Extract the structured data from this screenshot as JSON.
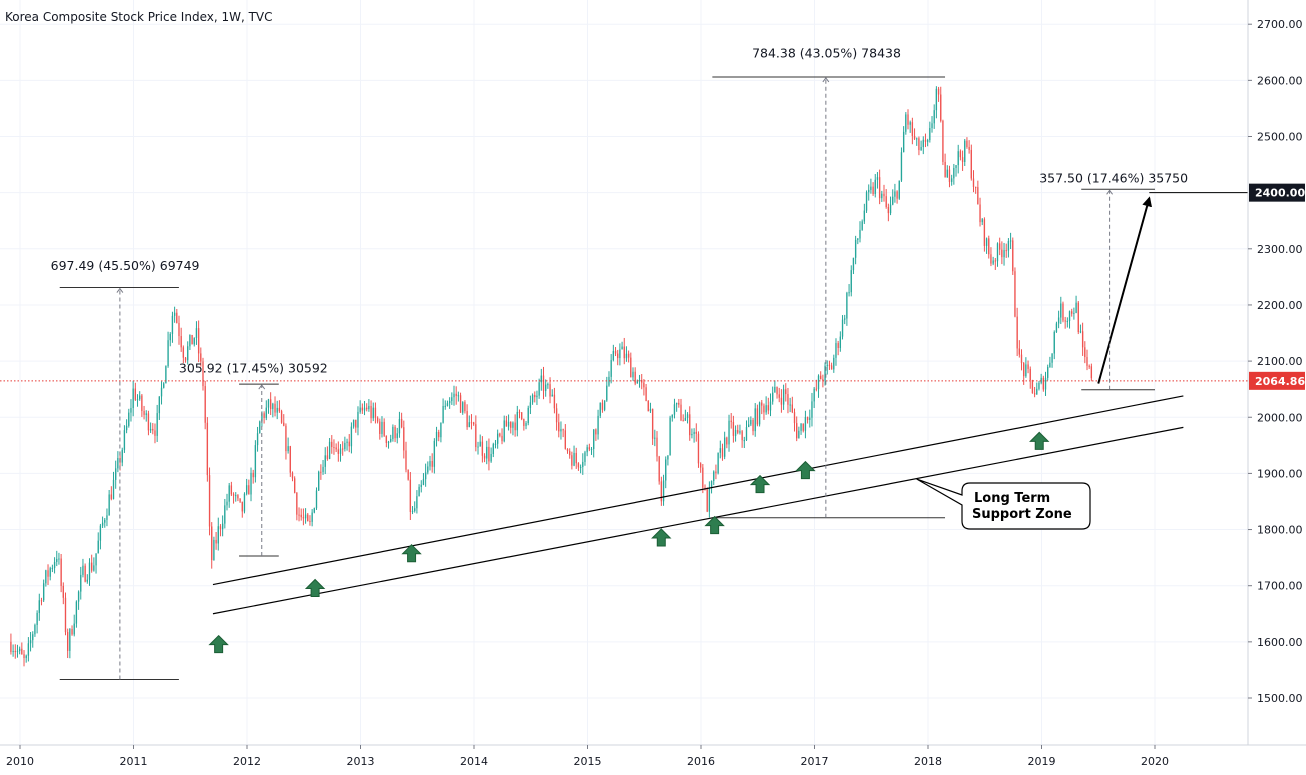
{
  "chart_data": {
    "type": "candlestick",
    "title": "Korea Composite Stock Price Index, 1W, TVC",
    "x_ticks": [
      "2010",
      "2011",
      "2012",
      "2013",
      "2014",
      "2015",
      "2016",
      "2017",
      "2018",
      "2019",
      "2020"
    ],
    "y_ticks": [
      "1500.00",
      "1600.00",
      "1700.00",
      "1800.00",
      "1900.00",
      "2000.00",
      "2100.00",
      "2200.00",
      "2300.00",
      "2400.00",
      "2500.00",
      "2600.00",
      "2700.00"
    ],
    "ylim": [
      1420,
      2745
    ],
    "xlim": [
      2009.9,
      2020.94
    ],
    "grid": true,
    "colors": {
      "up": "#26a69a",
      "down": "#ef5350",
      "line": "#000000",
      "current_price": "#e53935",
      "measure": "#787b86"
    },
    "current_price": {
      "value": 2064.86,
      "label": "2064.86"
    },
    "target_price": {
      "value": 2400,
      "label": "2400.00"
    },
    "price_path": [
      [
        2009.92,
        1600
      ],
      [
        2010.05,
        1560
      ],
      [
        2010.2,
        1700
      ],
      [
        2010.33,
        1760
      ],
      [
        2010.42,
        1590
      ],
      [
        2010.55,
        1720
      ],
      [
        2010.65,
        1740
      ],
      [
        2010.75,
        1830
      ],
      [
        2010.85,
        1900
      ],
      [
        2010.95,
        1990
      ],
      [
        2011.0,
        2050
      ],
      [
        2011.1,
        2000
      ],
      [
        2011.2,
        1980
      ],
      [
        2011.35,
        2200
      ],
      [
        2011.45,
        2110
      ],
      [
        2011.55,
        2150
      ],
      [
        2011.62,
        2050
      ],
      [
        2011.68,
        1740
      ],
      [
        2011.75,
        1800
      ],
      [
        2011.85,
        1870
      ],
      [
        2011.95,
        1830
      ],
      [
        2012.05,
        1900
      ],
      [
        2012.12,
        2000
      ],
      [
        2012.2,
        2020
      ],
      [
        2012.28,
        2000
      ],
      [
        2012.35,
        1950
      ],
      [
        2012.45,
        1830
      ],
      [
        2012.55,
        1800
      ],
      [
        2012.65,
        1920
      ],
      [
        2012.75,
        1960
      ],
      [
        2012.85,
        1930
      ],
      [
        2012.95,
        1990
      ],
      [
        2013.05,
        2020
      ],
      [
        2013.15,
        1990
      ],
      [
        2013.25,
        1960
      ],
      [
        2013.35,
        1990
      ],
      [
        2013.45,
        1820
      ],
      [
        2013.55,
        1880
      ],
      [
        2013.65,
        1940
      ],
      [
        2013.75,
        2030
      ],
      [
        2013.85,
        2040
      ],
      [
        2013.95,
        1990
      ],
      [
        2014.05,
        1950
      ],
      [
        2014.15,
        1930
      ],
      [
        2014.3,
        1990
      ],
      [
        2014.45,
        2000
      ],
      [
        2014.6,
        2060
      ],
      [
        2014.7,
        2030
      ],
      [
        2014.8,
        1950
      ],
      [
        2014.9,
        1920
      ],
      [
        2015.0,
        1940
      ],
      [
        2015.1,
        2000
      ],
      [
        2015.25,
        2120
      ],
      [
        2015.33,
        2110
      ],
      [
        2015.45,
        2060
      ],
      [
        2015.55,
        2020
      ],
      [
        2015.65,
        1850
      ],
      [
        2015.75,
        2020
      ],
      [
        2015.85,
        2000
      ],
      [
        2015.95,
        1970
      ],
      [
        2016.05,
        1840
      ],
      [
        2016.15,
        1920
      ],
      [
        2016.25,
        1980
      ],
      [
        2016.35,
        1960
      ],
      [
        2016.45,
        1990
      ],
      [
        2016.55,
        2020
      ],
      [
        2016.65,
        2040
      ],
      [
        2016.75,
        2040
      ],
      [
        2016.85,
        1970
      ],
      [
        2016.95,
        2010
      ],
      [
        2017.05,
        2070
      ],
      [
        2017.15,
        2090
      ],
      [
        2017.25,
        2170
      ],
      [
        2017.35,
        2290
      ],
      [
        2017.45,
        2380
      ],
      [
        2017.55,
        2420
      ],
      [
        2017.65,
        2360
      ],
      [
        2017.75,
        2420
      ],
      [
        2017.8,
        2540
      ],
      [
        2017.9,
        2480
      ],
      [
        2018.0,
        2480
      ],
      [
        2018.08,
        2590
      ],
      [
        2018.15,
        2420
      ],
      [
        2018.25,
        2460
      ],
      [
        2018.35,
        2480
      ],
      [
        2018.45,
        2360
      ],
      [
        2018.55,
        2280
      ],
      [
        2018.65,
        2300
      ],
      [
        2018.72,
        2320
      ],
      [
        2018.8,
        2100
      ],
      [
        2018.88,
        2070
      ],
      [
        2018.95,
        2040
      ],
      [
        2019.05,
        2080
      ],
      [
        2019.15,
        2190
      ],
      [
        2019.22,
        2180
      ],
      [
        2019.3,
        2200
      ],
      [
        2019.37,
        2100
      ],
      [
        2019.45,
        2064.86
      ]
    ],
    "lines": [
      {
        "from": [
          2011.7,
          1702
        ],
        "to": [
          2020.25,
          2038
        ]
      },
      {
        "from": [
          2011.7,
          1650
        ],
        "to": [
          2020.25,
          1982
        ]
      },
      {
        "from": [
          2019.5,
          2060
        ],
        "to": [
          2019.95,
          2390
        ],
        "arrow": true
      }
    ],
    "measurements": [
      {
        "text": "697.49 (45.50%) 69749",
        "x_text": 2010.27,
        "y_text": 2262,
        "x_from": 2010.35,
        "x_to": 2011.4,
        "low": 1533,
        "high": 2231,
        "arrow_x": 2010.88
      },
      {
        "text": "305.92 (17.45%) 30592",
        "x_text": 2011.4,
        "y_text": 2080,
        "x_from": 2011.93,
        "x_to": 2012.28,
        "low": 1753,
        "high": 2059,
        "arrow_x": 2012.13
      },
      {
        "text": "784.38 (43.05%) 78438",
        "x_text": 2016.45,
        "y_text": 2641,
        "x_from": 2016.1,
        "x_to": 2018.15,
        "low": 1821,
        "high": 2606,
        "arrow_x": 2017.1
      },
      {
        "text": "357.50 (17.46%) 35750",
        "x_text": 2018.98,
        "y_text": 2418,
        "x_from": 2019.35,
        "x_to": 2020.0,
        "low": 2049,
        "high": 2406,
        "arrow_x": 2019.6
      }
    ],
    "signal_arrows_x": [
      [
        2011.75,
        1595
      ],
      [
        2012.6,
        1695
      ],
      [
        2013.45,
        1757
      ],
      [
        2015.65,
        1785
      ],
      [
        2016.12,
        1807
      ],
      [
        2016.52,
        1880
      ],
      [
        2016.92,
        1905
      ],
      [
        2018.98,
        1957
      ]
    ],
    "callout": {
      "lines": [
        "Long Term",
        "Support Zone"
      ],
      "anchor": [
        2017.9,
        1890
      ]
    }
  }
}
